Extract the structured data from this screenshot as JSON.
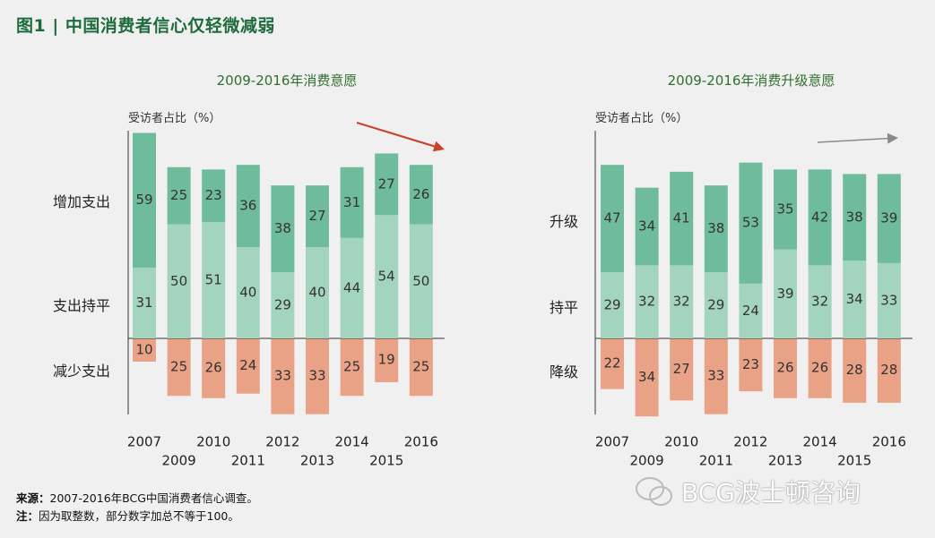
{
  "figure_title": "图1 | 中国消费者信心仅轻微减弱",
  "colors": {
    "increase": "#6ebc9c",
    "flat": "#a3d4bd",
    "decrease": "#e9a286",
    "left_arrow": "#c8452c",
    "right_arrow": "#8a8a8a",
    "title_green": "#1e6b3e"
  },
  "chart_data": [
    {
      "type": "bar",
      "title": "2009-2016年消费意愿",
      "ylabel": "受访者占比（%）",
      "categories": [
        "2007",
        "2009",
        "2010",
        "2011",
        "2012",
        "2013",
        "2014",
        "2015",
        "2016"
      ],
      "row_labels": [
        "增加支出",
        "支出持平",
        "减少支出"
      ],
      "series": [
        {
          "name": "增加支出",
          "values": [
            59,
            25,
            23,
            36,
            38,
            27,
            31,
            27,
            26
          ]
        },
        {
          "name": "支出持平",
          "values": [
            31,
            50,
            51,
            40,
            29,
            40,
            44,
            54,
            50
          ]
        },
        {
          "name": "减少支出",
          "values": [
            10,
            25,
            26,
            24,
            33,
            33,
            25,
            19,
            25
          ]
        }
      ],
      "trend_arrow": "down"
    },
    {
      "type": "bar",
      "title": "2009-2016年消费升级意愿",
      "ylabel": "受访者占比（%）",
      "categories": [
        "2007",
        "2009",
        "2010",
        "2011",
        "2012",
        "2013",
        "2014",
        "2015",
        "2016"
      ],
      "row_labels": [
        "升级",
        "持平",
        "降级"
      ],
      "series": [
        {
          "name": "升级",
          "values": [
            47,
            34,
            41,
            38,
            53,
            35,
            42,
            38,
            39
          ]
        },
        {
          "name": "持平",
          "values": [
            29,
            32,
            32,
            29,
            24,
            39,
            32,
            34,
            33
          ]
        },
        {
          "name": "降级",
          "values": [
            22,
            34,
            27,
            33,
            23,
            26,
            26,
            28,
            28
          ]
        }
      ],
      "trend_arrow": "flat"
    }
  ],
  "footnotes": {
    "source_label": "来源：",
    "source_text": "2007-2016年BCG中国消费者信心调查。",
    "note_label": "注：",
    "note_text": "因为取整数，部分数字加总不等于100。"
  },
  "watermark": "BCG波士顿咨询"
}
